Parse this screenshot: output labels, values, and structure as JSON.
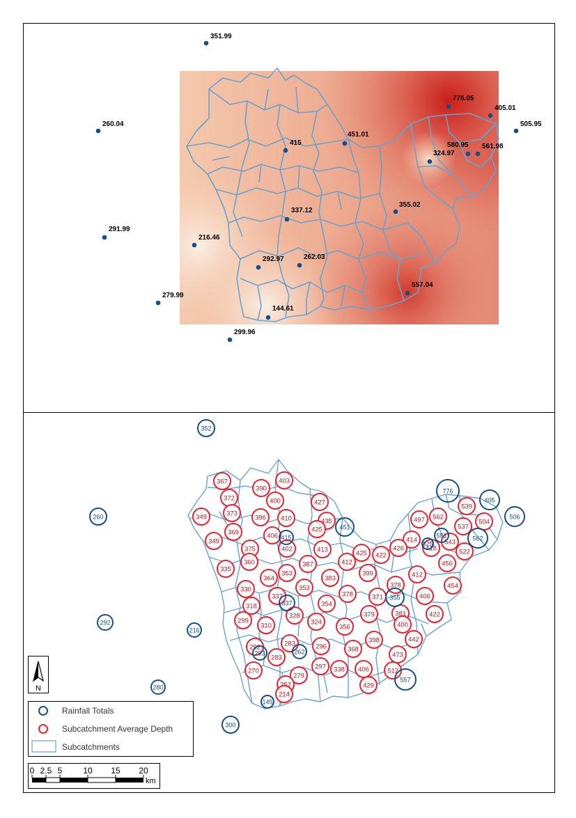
{
  "top_map": {
    "gauges": [
      {
        "label": "351.99"
      },
      {
        "label": "260.04"
      },
      {
        "label": "776.05"
      },
      {
        "label": "405.01"
      },
      {
        "label": "505.95"
      },
      {
        "label": "451.01"
      },
      {
        "label": "415"
      },
      {
        "label": "580.95"
      },
      {
        "label": "561.98"
      },
      {
        "label": "324.97"
      },
      {
        "label": "355.02"
      },
      {
        "label": "337.12"
      },
      {
        "label": "291.99"
      },
      {
        "label": "216.46"
      },
      {
        "label": "292.97"
      },
      {
        "label": "262.03"
      },
      {
        "label": "557.04"
      },
      {
        "label": "279.99"
      },
      {
        "label": "144.61"
      },
      {
        "label": "299.96"
      }
    ]
  },
  "bottom_map": {
    "rainfall_totals": [
      {
        "label": "352"
      },
      {
        "label": "260"
      },
      {
        "label": "776"
      },
      {
        "label": "405"
      },
      {
        "label": "506"
      },
      {
        "label": "451"
      },
      {
        "label": "415"
      },
      {
        "label": "581"
      },
      {
        "label": "562"
      },
      {
        "label": "325"
      },
      {
        "label": "355"
      },
      {
        "label": "337"
      },
      {
        "label": "292"
      },
      {
        "label": "216"
      },
      {
        "label": "293"
      },
      {
        "label": "262"
      },
      {
        "label": "557"
      },
      {
        "label": "280"
      },
      {
        "label": "145"
      },
      {
        "label": "300"
      }
    ],
    "subcatchment_depths": [
      {
        "label": "367"
      },
      {
        "label": "390"
      },
      {
        "label": "403"
      },
      {
        "label": "372"
      },
      {
        "label": "400"
      },
      {
        "label": "427"
      },
      {
        "label": "349"
      },
      {
        "label": "373"
      },
      {
        "label": "396"
      },
      {
        "label": "410"
      },
      {
        "label": "435"
      },
      {
        "label": "349"
      },
      {
        "label": "369"
      },
      {
        "label": "406"
      },
      {
        "label": "425"
      },
      {
        "label": "375"
      },
      {
        "label": "402"
      },
      {
        "label": "413"
      },
      {
        "label": "360"
      },
      {
        "label": "387"
      },
      {
        "label": "412"
      },
      {
        "label": "425"
      },
      {
        "label": "422"
      },
      {
        "label": "335"
      },
      {
        "label": "364"
      },
      {
        "label": "353"
      },
      {
        "label": "383"
      },
      {
        "label": "399"
      },
      {
        "label": "330"
      },
      {
        "label": "337"
      },
      {
        "label": "353"
      },
      {
        "label": "378"
      },
      {
        "label": "318"
      },
      {
        "label": "328"
      },
      {
        "label": "354"
      },
      {
        "label": "299"
      },
      {
        "label": "310"
      },
      {
        "label": "324"
      },
      {
        "label": "356"
      },
      {
        "label": "379"
      },
      {
        "label": "371"
      },
      {
        "label": "378"
      },
      {
        "label": "412"
      },
      {
        "label": "406"
      },
      {
        "label": "454"
      },
      {
        "label": "381"
      },
      {
        "label": "400"
      },
      {
        "label": "422"
      },
      {
        "label": "292"
      },
      {
        "label": "283"
      },
      {
        "label": "296"
      },
      {
        "label": "368"
      },
      {
        "label": "398"
      },
      {
        "label": "442"
      },
      {
        "label": "283"
      },
      {
        "label": "473"
      },
      {
        "label": "270"
      },
      {
        "label": "279"
      },
      {
        "label": "297"
      },
      {
        "label": "338"
      },
      {
        "label": "406"
      },
      {
        "label": "512"
      },
      {
        "label": "252"
      },
      {
        "label": "214"
      },
      {
        "label": "429"
      },
      {
        "label": "497"
      },
      {
        "label": "562"
      },
      {
        "label": "539"
      },
      {
        "label": "537"
      },
      {
        "label": "504"
      },
      {
        "label": "414"
      },
      {
        "label": "426"
      },
      {
        "label": "418"
      },
      {
        "label": "543"
      },
      {
        "label": "522"
      },
      {
        "label": "456"
      }
    ]
  },
  "legend": {
    "rainfall_totals": "Rainfall Totals",
    "subcatchment_depth": "Subcatchment Average Depth",
    "subcatchments": "Subcatchments"
  },
  "north_arrow": {
    "label": "N"
  },
  "scale_bar": {
    "ticks": [
      "0",
      "2.5",
      "5",
      "10",
      "15",
      "20"
    ],
    "unit": "km"
  },
  "colors": {
    "gauge": "#154f88",
    "subcatchment_line": "#6aa2cf",
    "depth_circle": "#e42534",
    "depth_text": "#b01e28",
    "frame": "#000000"
  },
  "icons": {
    "north_arrow": "north-arrow-icon",
    "rainfall_symbol": "blue-ring-icon",
    "depth_symbol": "red-ring-icon",
    "subcatchment_symbol": "polygon-swatch-icon"
  }
}
